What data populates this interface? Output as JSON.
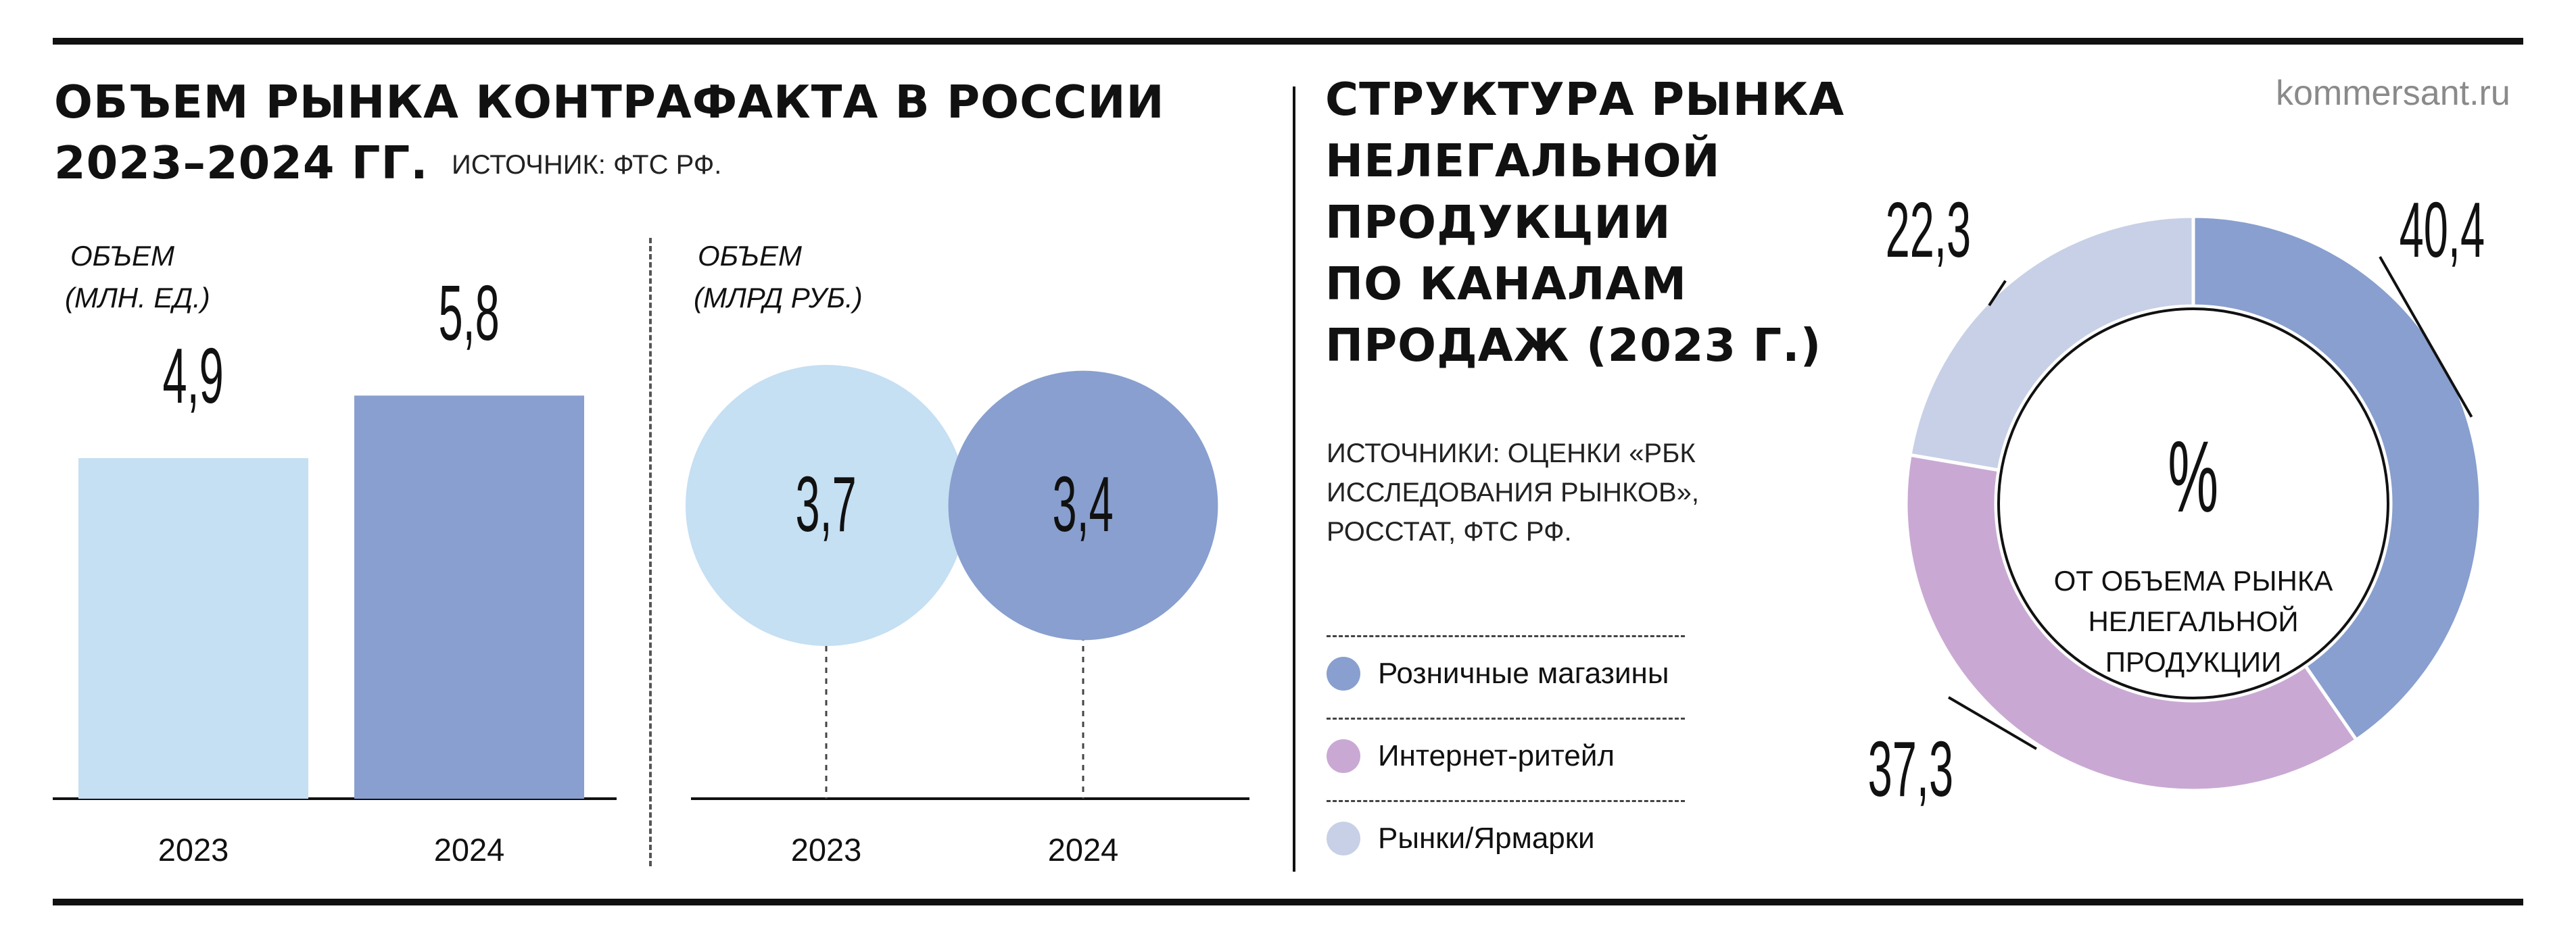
{
  "header": {
    "left_title_line1": "ОБЪЕМ РЫНКА КОНТРАФАКТА В РОССИИ",
    "left_title_line2": "2023–2024 ГГ.",
    "left_source": "ИСТОЧНИК: ФТС РФ.",
    "right_title_lines": [
      "СТРУКТУРА РЫНКА",
      "НЕЛЕГАЛЬНОЙ",
      "ПРОДУКЦИИ",
      "ПО КАНАЛАМ",
      "ПРОДАЖ (2023 Г.)"
    ],
    "right_source_lines": [
      "ИСТОЧНИКИ: ОЦЕНКИ «РБК",
      "ИССЛЕДОВАНИЯ РЫНКОВ»,",
      "РОССТАТ, ФТС РФ."
    ],
    "site": "kommersant.ru"
  },
  "chart_data": [
    {
      "type": "bar",
      "unit_lines": [
        "ОБЪЕМ",
        "(МЛН. ЕД.)"
      ],
      "categories": [
        "2023",
        "2024"
      ],
      "values": [
        4.9,
        5.8
      ],
      "value_labels": [
        "4,9",
        "5,8"
      ],
      "colors": [
        "#c5dff3",
        "#889fcf"
      ],
      "ylim": [
        0,
        7
      ]
    },
    {
      "type": "bubble",
      "unit_lines": [
        "ОБЪЕМ",
        "(МЛРД РУБ.)"
      ],
      "categories": [
        "2023",
        "2024"
      ],
      "values": [
        3.7,
        3.4
      ],
      "value_labels": [
        "3,7",
        "3,4"
      ],
      "colors": [
        "#c5dff3",
        "#889fcf"
      ]
    },
    {
      "type": "pie",
      "center_symbol": "%",
      "center_caption_lines": [
        "ОТ ОБЪЕМА РЫНКА",
        "НЕЛЕГАЛЬНОЙ",
        "ПРОДУКЦИИ"
      ],
      "slices": [
        {
          "label": "Розничные магазины",
          "value": 40.4,
          "value_label": "40,4",
          "color": "#889fcf"
        },
        {
          "label": "Интернет-ритейл",
          "value": 37.3,
          "value_label": "37,3",
          "color": "#c9a9d3"
        },
        {
          "label": "Рынки/Ярмарки",
          "value": 22.3,
          "value_label": "22,3",
          "color": "#c7d0e6"
        }
      ]
    }
  ]
}
